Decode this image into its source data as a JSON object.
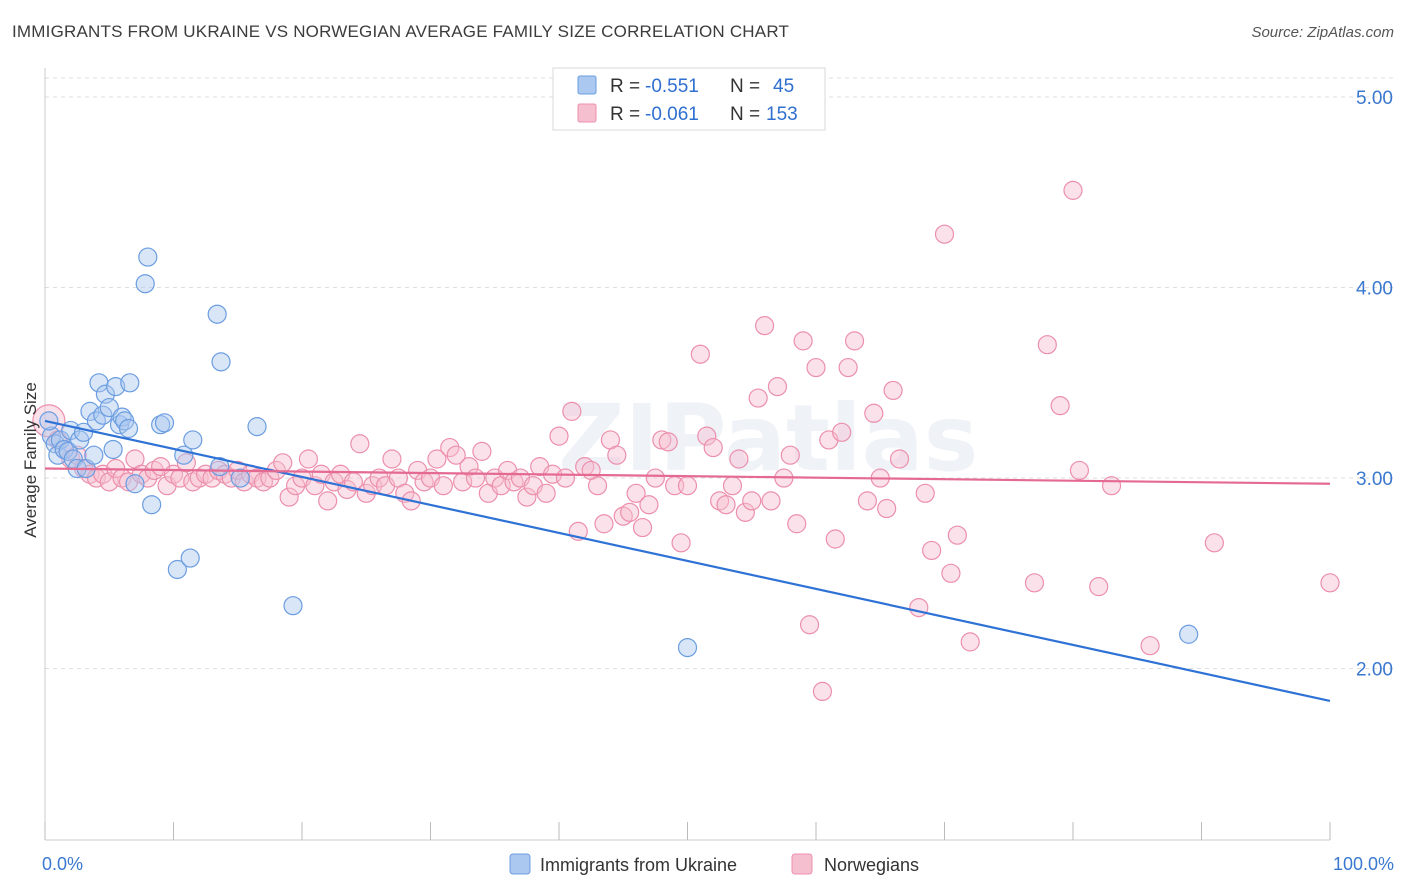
{
  "header": {
    "title": "IMMIGRANTS FROM UKRAINE VS NORWEGIAN AVERAGE FAMILY SIZE CORRELATION CHART",
    "source": "Source: ZipAtlas.com"
  },
  "watermark": "ZIPatlas",
  "colors": {
    "series_a": "#6b9de0",
    "series_a_fill": "#aac8f0",
    "series_a_line": "#2f72d6",
    "series_b": "#ec8fac",
    "series_b_fill": "#f6bfd0",
    "series_b_line": "#e46a93",
    "tick_label": "#3a78cf",
    "grid": "#dddddd"
  },
  "legend_top": {
    "rows": [
      {
        "r_label": "R =",
        "r_value": "-0.551",
        "n_label": "N =",
        "n_value": "45"
      },
      {
        "r_label": "R =",
        "r_value": "-0.061",
        "n_label": "N =",
        "n_value": "153"
      }
    ]
  },
  "chart_data": {
    "type": "scatter",
    "title": "IMMIGRANTS FROM UKRAINE VS NORWEGIAN AVERAGE FAMILY SIZE CORRELATION CHART",
    "xlabel": "",
    "ylabel": "Average Family Size",
    "x_tick_labels": [
      "0.0%",
      "100.0%"
    ],
    "y_ticks": [
      2.0,
      3.0,
      4.0,
      5.0
    ],
    "y_tick_labels": [
      "2.00",
      "3.00",
      "4.00",
      "5.00"
    ],
    "xlim": [
      0,
      100
    ],
    "ylim": [
      1.1,
      5.1
    ],
    "grid": true,
    "legend_position": "top-center",
    "series": [
      {
        "name": "Immigrants from Ukraine",
        "trend": {
          "x0": 0,
          "y0": 3.3,
          "x1": 100,
          "y1": 1.83
        },
        "points": [
          [
            0.5,
            3.22
          ],
          [
            0.8,
            3.18
          ],
          [
            1.0,
            3.12
          ],
          [
            1.2,
            3.2
          ],
          [
            1.5,
            3.15
          ],
          [
            1.8,
            3.14
          ],
          [
            2.0,
            3.25
          ],
          [
            2.2,
            3.1
          ],
          [
            2.5,
            3.05
          ],
          [
            2.7,
            3.2
          ],
          [
            3.0,
            3.24
          ],
          [
            3.2,
            3.05
          ],
          [
            3.5,
            3.35
          ],
          [
            3.8,
            3.12
          ],
          [
            4.0,
            3.3
          ],
          [
            4.2,
            3.5
          ],
          [
            4.5,
            3.33
          ],
          [
            4.7,
            3.44
          ],
          [
            5.0,
            3.37
          ],
          [
            5.3,
            3.15
          ],
          [
            5.5,
            3.48
          ],
          [
            5.8,
            3.28
          ],
          [
            6.0,
            3.32
          ],
          [
            6.2,
            3.3
          ],
          [
            6.5,
            3.26
          ],
          [
            6.6,
            3.5
          ],
          [
            7.0,
            2.97
          ],
          [
            7.8,
            4.02
          ],
          [
            8.0,
            4.16
          ],
          [
            8.3,
            2.86
          ],
          [
            9.0,
            3.28
          ],
          [
            9.3,
            3.29
          ],
          [
            10.3,
            2.52
          ],
          [
            10.8,
            3.12
          ],
          [
            11.3,
            2.58
          ],
          [
            11.5,
            3.2
          ],
          [
            13.4,
            3.86
          ],
          [
            13.7,
            3.61
          ],
          [
            13.6,
            3.06
          ],
          [
            15.2,
            3.0
          ],
          [
            16.5,
            3.27
          ],
          [
            19.3,
            2.33
          ],
          [
            50.0,
            2.11
          ],
          [
            89.0,
            2.18
          ],
          [
            0.3,
            3.3
          ]
        ]
      },
      {
        "name": "Norwegians",
        "trend": {
          "x0": 0,
          "y0": 3.05,
          "x1": 100,
          "y1": 2.97
        },
        "points": [
          [
            0.3,
            3.3
          ],
          [
            1.0,
            3.2
          ],
          [
            1.5,
            3.15
          ],
          [
            2.0,
            3.1
          ],
          [
            2.5,
            3.12
          ],
          [
            3.0,
            3.05
          ],
          [
            3.5,
            3.02
          ],
          [
            4.0,
            3.0
          ],
          [
            4.5,
            3.02
          ],
          [
            5.0,
            2.98
          ],
          [
            5.5,
            3.05
          ],
          [
            6.0,
            3.0
          ],
          [
            6.5,
            2.98
          ],
          [
            7.0,
            3.1
          ],
          [
            7.5,
            3.02
          ],
          [
            8.0,
            3.0
          ],
          [
            8.5,
            3.04
          ],
          [
            9.0,
            3.06
          ],
          [
            9.5,
            2.96
          ],
          [
            10.0,
            3.02
          ],
          [
            10.5,
            3.0
          ],
          [
            11.0,
            3.08
          ],
          [
            11.5,
            2.98
          ],
          [
            12.0,
            3.0
          ],
          [
            12.5,
            3.02
          ],
          [
            13.0,
            3.0
          ],
          [
            13.5,
            3.04
          ],
          [
            14.0,
            3.02
          ],
          [
            14.5,
            3.0
          ],
          [
            15.0,
            3.04
          ],
          [
            15.5,
            2.98
          ],
          [
            16.0,
            3.02
          ],
          [
            16.5,
            3.0
          ],
          [
            17.0,
            2.98
          ],
          [
            17.5,
            3.0
          ],
          [
            18.0,
            3.04
          ],
          [
            18.5,
            3.08
          ],
          [
            19.0,
            2.9
          ],
          [
            19.5,
            2.96
          ],
          [
            20.0,
            3.0
          ],
          [
            20.5,
            3.1
          ],
          [
            21.0,
            2.96
          ],
          [
            21.5,
            3.02
          ],
          [
            22.0,
            2.88
          ],
          [
            22.5,
            2.98
          ],
          [
            23.0,
            3.02
          ],
          [
            23.5,
            2.94
          ],
          [
            24.0,
            2.98
          ],
          [
            24.5,
            3.18
          ],
          [
            25.0,
            2.92
          ],
          [
            25.5,
            2.96
          ],
          [
            26.0,
            3.0
          ],
          [
            26.5,
            2.96
          ],
          [
            27.0,
            3.1
          ],
          [
            27.5,
            3.0
          ],
          [
            28.0,
            2.92
          ],
          [
            28.5,
            2.88
          ],
          [
            29.0,
            3.04
          ],
          [
            29.5,
            2.98
          ],
          [
            30.0,
            3.0
          ],
          [
            30.5,
            3.1
          ],
          [
            31.0,
            2.96
          ],
          [
            31.5,
            3.16
          ],
          [
            32.0,
            3.12
          ],
          [
            32.5,
            2.98
          ],
          [
            33.0,
            3.06
          ],
          [
            33.5,
            3.0
          ],
          [
            34.0,
            3.14
          ],
          [
            34.5,
            2.92
          ],
          [
            35.0,
            3.0
          ],
          [
            35.5,
            2.96
          ],
          [
            36.0,
            3.04
          ],
          [
            36.5,
            2.98
          ],
          [
            37.0,
            3.0
          ],
          [
            37.5,
            2.9
          ],
          [
            38.0,
            2.96
          ],
          [
            38.5,
            3.06
          ],
          [
            39.0,
            2.92
          ],
          [
            39.5,
            3.02
          ],
          [
            40.0,
            3.22
          ],
          [
            40.5,
            3.0
          ],
          [
            41.0,
            3.35
          ],
          [
            41.5,
            2.72
          ],
          [
            42.0,
            3.06
          ],
          [
            42.5,
            3.04
          ],
          [
            43.0,
            2.96
          ],
          [
            43.5,
            2.76
          ],
          [
            44.0,
            3.2
          ],
          [
            44.5,
            3.12
          ],
          [
            45.0,
            2.8
          ],
          [
            45.5,
            2.82
          ],
          [
            46.0,
            2.92
          ],
          [
            46.5,
            2.74
          ],
          [
            47.0,
            2.86
          ],
          [
            47.5,
            3.0
          ],
          [
            48.0,
            3.2
          ],
          [
            48.5,
            3.19
          ],
          [
            49.0,
            2.96
          ],
          [
            49.5,
            2.66
          ],
          [
            50.0,
            2.96
          ],
          [
            51.0,
            3.65
          ],
          [
            51.5,
            3.22
          ],
          [
            52.0,
            3.16
          ],
          [
            52.5,
            2.88
          ],
          [
            53.0,
            2.86
          ],
          [
            53.5,
            2.96
          ],
          [
            54.0,
            3.1
          ],
          [
            54.5,
            2.82
          ],
          [
            55.0,
            2.88
          ],
          [
            55.5,
            3.42
          ],
          [
            56.0,
            3.8
          ],
          [
            56.5,
            2.88
          ],
          [
            57.0,
            3.48
          ],
          [
            57.5,
            3.0
          ],
          [
            58.0,
            3.12
          ],
          [
            58.5,
            2.76
          ],
          [
            59.0,
            3.72
          ],
          [
            59.5,
            2.23
          ],
          [
            60.0,
            3.58
          ],
          [
            60.5,
            1.88
          ],
          [
            61.0,
            3.2
          ],
          [
            61.5,
            2.68
          ],
          [
            62.0,
            3.24
          ],
          [
            62.5,
            3.58
          ],
          [
            63.0,
            3.72
          ],
          [
            64.0,
            2.88
          ],
          [
            64.5,
            3.34
          ],
          [
            65.0,
            3.0
          ],
          [
            65.5,
            2.84
          ],
          [
            66.0,
            3.46
          ],
          [
            66.5,
            3.1
          ],
          [
            68.0,
            2.32
          ],
          [
            68.5,
            2.92
          ],
          [
            69.0,
            2.62
          ],
          [
            70.0,
            4.28
          ],
          [
            70.5,
            2.5
          ],
          [
            71.0,
            2.7
          ],
          [
            72.0,
            2.14
          ],
          [
            77.0,
            2.45
          ],
          [
            78.0,
            3.7
          ],
          [
            79.0,
            3.38
          ],
          [
            80.0,
            4.51
          ],
          [
            80.5,
            3.04
          ],
          [
            82.0,
            2.43
          ],
          [
            83.0,
            2.96
          ],
          [
            86.0,
            2.12
          ],
          [
            91.0,
            2.66
          ],
          [
            100.0,
            2.45
          ]
        ]
      }
    ]
  },
  "legend_bottom": {
    "items": [
      {
        "label": "Immigrants from Ukraine"
      },
      {
        "label": "Norwegians"
      }
    ]
  }
}
